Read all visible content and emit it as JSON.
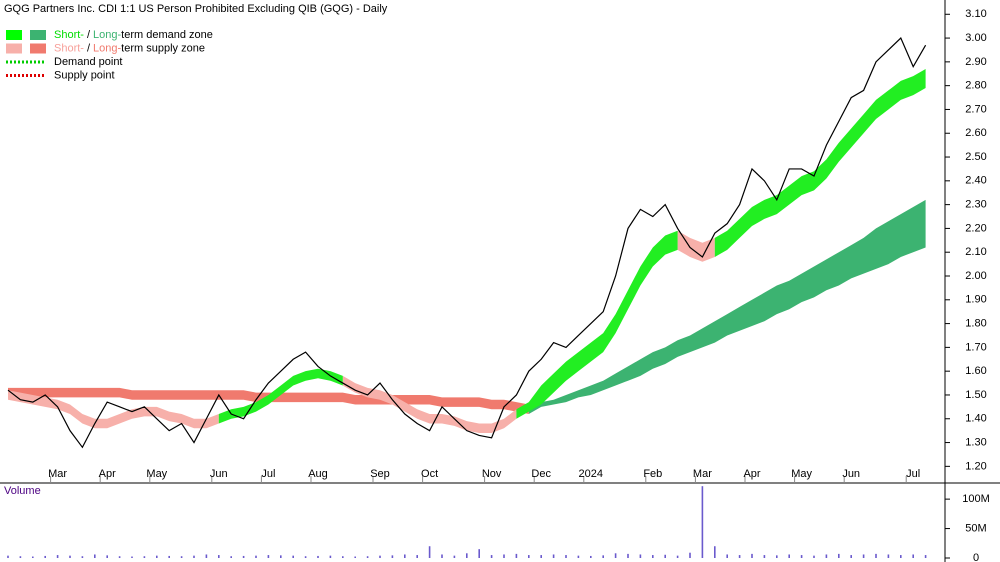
{
  "chart_data": [
    {
      "type": "line",
      "title": "GQG Partners Inc. CDI 1:1 US Person Prohibited Excluding QIB (GQG) - Daily",
      "categories": [
        null,
        null,
        null,
        null,
        "Mar",
        null,
        null,
        null,
        "Apr",
        null,
        null,
        null,
        "May",
        null,
        null,
        null,
        null,
        "Jun",
        null,
        null,
        null,
        "Jul",
        null,
        null,
        null,
        "Aug",
        null,
        null,
        null,
        null,
        "Sep",
        null,
        null,
        null,
        "Oct",
        null,
        null,
        null,
        null,
        "Nov",
        null,
        null,
        null,
        "Dec",
        null,
        null,
        null,
        "2024",
        null,
        null,
        null,
        null,
        "Feb",
        null,
        null,
        null,
        "Mar",
        null,
        null,
        null,
        "Apr",
        null,
        null,
        null,
        "May",
        null,
        null,
        null,
        "Jun",
        null,
        null,
        null,
        null,
        "Jul",
        null
      ],
      "values": [
        1.52,
        1.48,
        1.47,
        1.5,
        1.45,
        1.35,
        1.28,
        1.38,
        1.47,
        1.45,
        1.43,
        1.45,
        1.4,
        1.35,
        1.38,
        1.3,
        1.4,
        1.5,
        1.42,
        1.4,
        1.48,
        1.55,
        1.6,
        1.65,
        1.68,
        1.62,
        1.58,
        1.55,
        1.52,
        1.5,
        1.55,
        1.48,
        1.42,
        1.38,
        1.35,
        1.45,
        1.4,
        1.35,
        1.33,
        1.32,
        1.45,
        1.5,
        1.6,
        1.65,
        1.72,
        1.7,
        1.75,
        1.8,
        1.85,
        2.0,
        2.2,
        2.28,
        2.25,
        2.3,
        2.2,
        2.12,
        2.08,
        2.18,
        2.22,
        2.3,
        2.45,
        2.4,
        2.32,
        2.45,
        2.45,
        2.42,
        2.55,
        2.65,
        2.75,
        2.78,
        2.9,
        2.95,
        3.0,
        2.88,
        2.97
      ],
      "color": "#000000",
      "zones": [
        {
          "color": "#f07a6e",
          "upper": [
            1.53,
            1.53,
            1.53,
            1.53,
            1.53,
            1.53,
            1.53,
            1.53,
            1.53,
            1.53,
            1.52,
            1.52,
            1.52,
            1.52,
            1.52,
            1.52,
            1.52,
            1.52,
            1.52,
            1.52,
            1.51,
            1.51,
            1.51,
            1.51,
            1.51,
            1.51,
            1.51,
            1.51,
            1.5,
            1.5,
            1.5,
            1.5,
            1.5,
            1.5,
            1.5,
            1.49,
            1.49,
            1.49,
            1.49,
            1.48,
            1.48,
            1.47,
            1.46,
            null,
            null,
            null,
            null,
            null,
            null,
            null,
            null,
            null,
            null,
            null,
            null,
            null,
            null,
            null,
            null,
            null,
            null,
            null,
            null,
            null,
            null,
            null,
            null,
            null,
            null,
            null,
            null,
            null,
            null,
            null,
            null
          ],
          "lower": [
            1.49,
            1.49,
            1.49,
            1.49,
            1.49,
            1.49,
            1.49,
            1.49,
            1.49,
            1.49,
            1.48,
            1.48,
            1.48,
            1.48,
            1.48,
            1.48,
            1.48,
            1.48,
            1.48,
            1.48,
            1.47,
            1.47,
            1.47,
            1.47,
            1.47,
            1.47,
            1.47,
            1.47,
            1.46,
            1.46,
            1.46,
            1.46,
            1.46,
            1.46,
            1.46,
            1.45,
            1.45,
            1.45,
            1.45,
            1.44,
            1.44,
            1.43,
            1.42,
            null,
            null,
            null,
            null,
            null,
            null,
            null,
            null,
            null,
            null,
            null,
            null,
            null,
            null,
            null,
            null,
            null,
            null,
            null,
            null,
            null,
            null,
            null,
            null,
            null,
            null,
            null,
            null,
            null,
            null,
            null,
            null
          ]
        },
        {
          "color": "#3cb371",
          "upper": [
            null,
            null,
            null,
            null,
            null,
            null,
            null,
            null,
            null,
            null,
            null,
            null,
            null,
            null,
            null,
            null,
            null,
            null,
            null,
            null,
            null,
            null,
            null,
            null,
            null,
            null,
            null,
            null,
            null,
            null,
            null,
            null,
            null,
            null,
            null,
            null,
            null,
            null,
            null,
            null,
            null,
            null,
            1.46,
            1.47,
            1.48,
            1.5,
            1.52,
            1.54,
            1.56,
            1.59,
            1.62,
            1.65,
            1.68,
            1.7,
            1.73,
            1.75,
            1.78,
            1.81,
            1.84,
            1.87,
            1.9,
            1.93,
            1.96,
            1.98,
            2.01,
            2.04,
            2.07,
            2.1,
            2.13,
            2.16,
            2.2,
            2.23,
            2.26,
            2.29,
            2.32
          ],
          "lower": [
            null,
            null,
            null,
            null,
            null,
            null,
            null,
            null,
            null,
            null,
            null,
            null,
            null,
            null,
            null,
            null,
            null,
            null,
            null,
            null,
            null,
            null,
            null,
            null,
            null,
            null,
            null,
            null,
            null,
            null,
            null,
            null,
            null,
            null,
            null,
            null,
            null,
            null,
            null,
            null,
            null,
            null,
            1.42,
            1.45,
            1.46,
            1.47,
            1.49,
            1.5,
            1.52,
            1.54,
            1.56,
            1.58,
            1.61,
            1.63,
            1.66,
            1.68,
            1.7,
            1.72,
            1.75,
            1.77,
            1.79,
            1.81,
            1.84,
            1.86,
            1.89,
            1.91,
            1.94,
            1.96,
            1.99,
            2.01,
            2.03,
            2.05,
            2.08,
            2.1,
            2.12
          ]
        },
        {
          "color": "#f7b0aa",
          "upper": [
            1.52,
            1.51,
            1.5,
            1.49,
            1.48,
            1.46,
            1.42,
            1.4,
            1.4,
            1.42,
            1.44,
            1.45,
            1.45,
            1.43,
            1.42,
            1.4,
            1.4,
            1.42,
            null,
            null,
            null,
            null,
            null,
            null,
            null,
            null,
            null,
            1.58,
            1.55,
            1.53,
            1.52,
            1.5,
            1.47,
            1.44,
            1.42,
            1.42,
            1.41,
            1.39,
            1.38,
            1.38,
            1.4,
            1.44,
            null,
            null,
            null,
            null,
            null,
            null,
            null,
            null,
            null,
            null,
            null,
            null,
            2.19,
            2.16,
            2.14,
            2.16,
            null,
            null,
            null,
            null,
            null,
            null,
            null,
            null,
            null,
            null,
            null,
            null,
            null,
            null,
            null,
            null,
            null
          ],
          "lower": [
            1.48,
            1.47,
            1.46,
            1.45,
            1.44,
            1.42,
            1.38,
            1.36,
            1.36,
            1.38,
            1.4,
            1.41,
            1.41,
            1.39,
            1.38,
            1.36,
            1.36,
            1.38,
            null,
            null,
            null,
            null,
            null,
            null,
            null,
            null,
            null,
            1.54,
            1.51,
            1.49,
            1.48,
            1.46,
            1.43,
            1.4,
            1.38,
            1.38,
            1.37,
            1.35,
            1.34,
            1.34,
            1.36,
            1.4,
            null,
            null,
            null,
            null,
            null,
            null,
            null,
            null,
            null,
            null,
            null,
            null,
            2.11,
            2.08,
            2.06,
            2.08,
            null,
            null,
            null,
            null,
            null,
            null,
            null,
            null,
            null,
            null,
            null,
            null,
            null,
            null,
            null,
            null,
            null
          ]
        },
        {
          "color": "#22ee22",
          "upper": [
            null,
            null,
            null,
            null,
            null,
            null,
            null,
            null,
            null,
            null,
            null,
            null,
            null,
            null,
            null,
            null,
            null,
            1.42,
            1.44,
            1.45,
            1.47,
            1.5,
            1.54,
            1.58,
            1.6,
            1.61,
            1.6,
            1.58,
            null,
            null,
            null,
            null,
            null,
            null,
            null,
            null,
            null,
            null,
            null,
            null,
            null,
            1.44,
            1.47,
            1.54,
            1.59,
            1.64,
            1.68,
            1.72,
            1.76,
            1.84,
            1.94,
            2.04,
            2.12,
            2.17,
            2.19,
            null,
            null,
            2.16,
            2.19,
            2.24,
            2.29,
            2.32,
            2.34,
            2.38,
            2.42,
            2.44,
            2.49,
            2.56,
            2.62,
            2.68,
            2.74,
            2.78,
            2.82,
            2.84,
            2.87
          ],
          "lower": [
            null,
            null,
            null,
            null,
            null,
            null,
            null,
            null,
            null,
            null,
            null,
            null,
            null,
            null,
            null,
            null,
            null,
            1.38,
            1.4,
            1.41,
            1.43,
            1.46,
            1.5,
            1.54,
            1.56,
            1.57,
            1.56,
            1.54,
            null,
            null,
            null,
            null,
            null,
            null,
            null,
            null,
            null,
            null,
            null,
            null,
            null,
            1.4,
            1.43,
            1.46,
            1.51,
            1.56,
            1.6,
            1.64,
            1.68,
            1.76,
            1.86,
            1.96,
            2.04,
            2.09,
            2.11,
            null,
            null,
            2.08,
            2.11,
            2.16,
            2.21,
            2.24,
            2.26,
            2.3,
            2.34,
            2.36,
            2.41,
            2.48,
            2.54,
            2.6,
            2.66,
            2.7,
            2.74,
            2.76,
            2.79
          ]
        }
      ],
      "legend": [
        {
          "swatches": [
            "#00ff00",
            "#3cb371"
          ],
          "parts": [
            {
              "text": "Short-",
              "color": "#00dd00"
            },
            {
              "text": "/",
              "color": "#000000"
            },
            {
              "text": "Long-",
              "color": "#3cb371"
            },
            {
              "text": "term demand zone",
              "color": "#000000"
            }
          ]
        },
        {
          "swatches": [
            "#f7b0aa",
            "#f07a6e"
          ],
          "parts": [
            {
              "text": "Short-",
              "color": "#f7a09a"
            },
            {
              "text": "/",
              "color": "#000000"
            },
            {
              "text": "Long-",
              "color": "#f07a6e"
            },
            {
              "text": "term supply zone",
              "color": "#000000"
            }
          ]
        },
        {
          "dotted": "#00cc00",
          "parts": [
            {
              "text": "Demand point",
              "color": "#000000"
            }
          ]
        },
        {
          "dotted": "#dd0000",
          "parts": [
            {
              "text": "Supply point",
              "color": "#000000"
            }
          ]
        }
      ],
      "ylim": [
        1.13,
        3.16
      ],
      "yticks": [
        {
          "value": 1.2,
          "label": "1.20"
        },
        {
          "value": 1.3,
          "label": "1.30"
        },
        {
          "value": 1.4,
          "label": "1.40"
        },
        {
          "value": 1.5,
          "label": "1.50"
        },
        {
          "value": 1.6,
          "label": "1.60"
        },
        {
          "value": 1.7,
          "label": "1.70"
        },
        {
          "value": 1.8,
          "label": "1.80"
        },
        {
          "value": 1.9,
          "label": "1.90"
        },
        {
          "value": 2.0,
          "label": "2.00"
        },
        {
          "value": 2.1,
          "label": "2.10"
        },
        {
          "value": 2.2,
          "label": "2.20"
        },
        {
          "value": 2.3,
          "label": "2.30"
        },
        {
          "value": 2.4,
          "label": "2.40"
        },
        {
          "value": 2.5,
          "label": "2.50"
        },
        {
          "value": 2.6,
          "label": "2.60"
        },
        {
          "value": 2.7,
          "label": "2.70"
        },
        {
          "value": 2.8,
          "label": "2.80"
        },
        {
          "value": 2.9,
          "label": "2.90"
        },
        {
          "value": 3.0,
          "label": "3.00"
        },
        {
          "value": 3.1,
          "label": "3.10"
        }
      ]
    },
    {
      "type": "bar",
      "title": "Volume",
      "color": "#6a5acd",
      "values": [
        4000000,
        3000000,
        2500000,
        3500000,
        5000000,
        4000000,
        3000000,
        6000000,
        4500000,
        3000000,
        2500000,
        3000000,
        4000000,
        3500000,
        3000000,
        4000000,
        6000000,
        5000000,
        3000000,
        3500000,
        4000000,
        5000000,
        4500000,
        4000000,
        3000000,
        3500000,
        4000000,
        3000000,
        2500000,
        3000000,
        4000000,
        4500000,
        6000000,
        5000000,
        20000000,
        6000000,
        4000000,
        8000000,
        15000000,
        5000000,
        6000000,
        7000000,
        5000000,
        5000000,
        6000000,
        5000000,
        4000000,
        3500000,
        4500000,
        8000000,
        7000000,
        6000000,
        5000000,
        5500000,
        4000000,
        9000000,
        122000000,
        20000000,
        6000000,
        5000000,
        7000000,
        5000000,
        4500000,
        6000000,
        5000000,
        4000000,
        6000000,
        7000000,
        5000000,
        6000000,
        7000000,
        6000000,
        5000000,
        6000000,
        5000000
      ],
      "ylim": [
        0,
        124000000
      ],
      "yticks": [
        0,
        {
          "value": 50000000,
          "label": "50M"
        },
        {
          "value": 100000000,
          "label": "100M"
        }
      ]
    }
  ]
}
